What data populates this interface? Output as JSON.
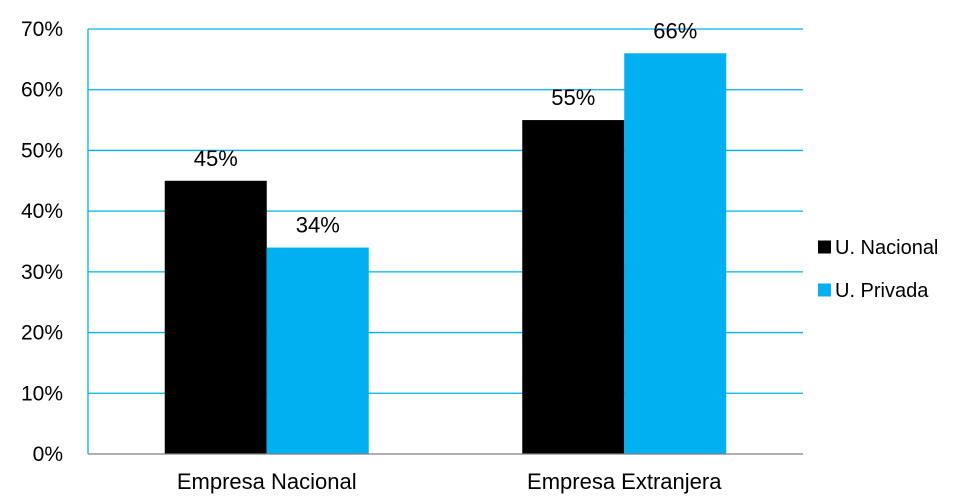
{
  "chart_data": {
    "type": "bar",
    "categories": [
      "Empresa Nacional",
      "Empresa Extranjera"
    ],
    "series": [
      {
        "name": "U. Nacional",
        "values": [
          45,
          55
        ],
        "labels": [
          "45%",
          "55%"
        ],
        "color": "#000000"
      },
      {
        "name": "U. Privada",
        "values": [
          34,
          66
        ],
        "labels": [
          "34%",
          "66%"
        ],
        "color": "#00b0f0"
      }
    ],
    "title": "",
    "xlabel": "",
    "ylabel": "",
    "ylim": [
      0,
      70
    ],
    "yticks": [
      "0%",
      "10%",
      "20%",
      "30%",
      "40%",
      "50%",
      "60%",
      "70%"
    ],
    "grid": true,
    "gridline_color": "#00b0f0",
    "legend_position": "right"
  }
}
